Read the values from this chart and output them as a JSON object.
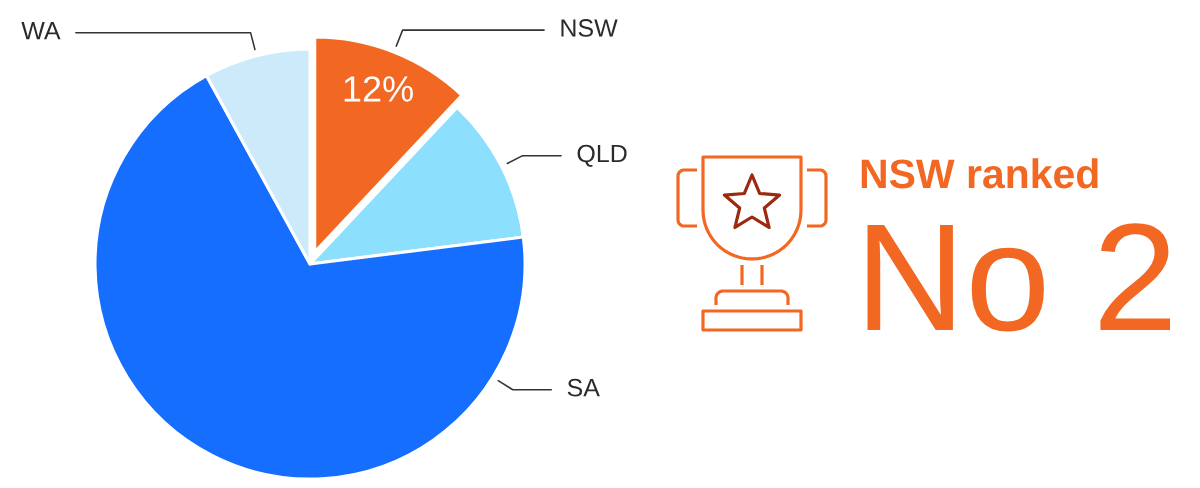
{
  "chart_data": [
    {
      "type": "pie",
      "categories": [
        "NSW",
        "QLD",
        "SA",
        "WA"
      ],
      "values": [
        12,
        11,
        69,
        8
      ],
      "colors": [
        "#f26722",
        "#8ddffe",
        "#166efe",
        "#cdeafb"
      ],
      "value_labels": [
        "12%",
        null,
        null,
        null
      ]
    },
    {
      "type": "other",
      "title": "NSW ranked",
      "annotations": [
        "No 2"
      ],
      "color": "#f26722"
    }
  ]
}
